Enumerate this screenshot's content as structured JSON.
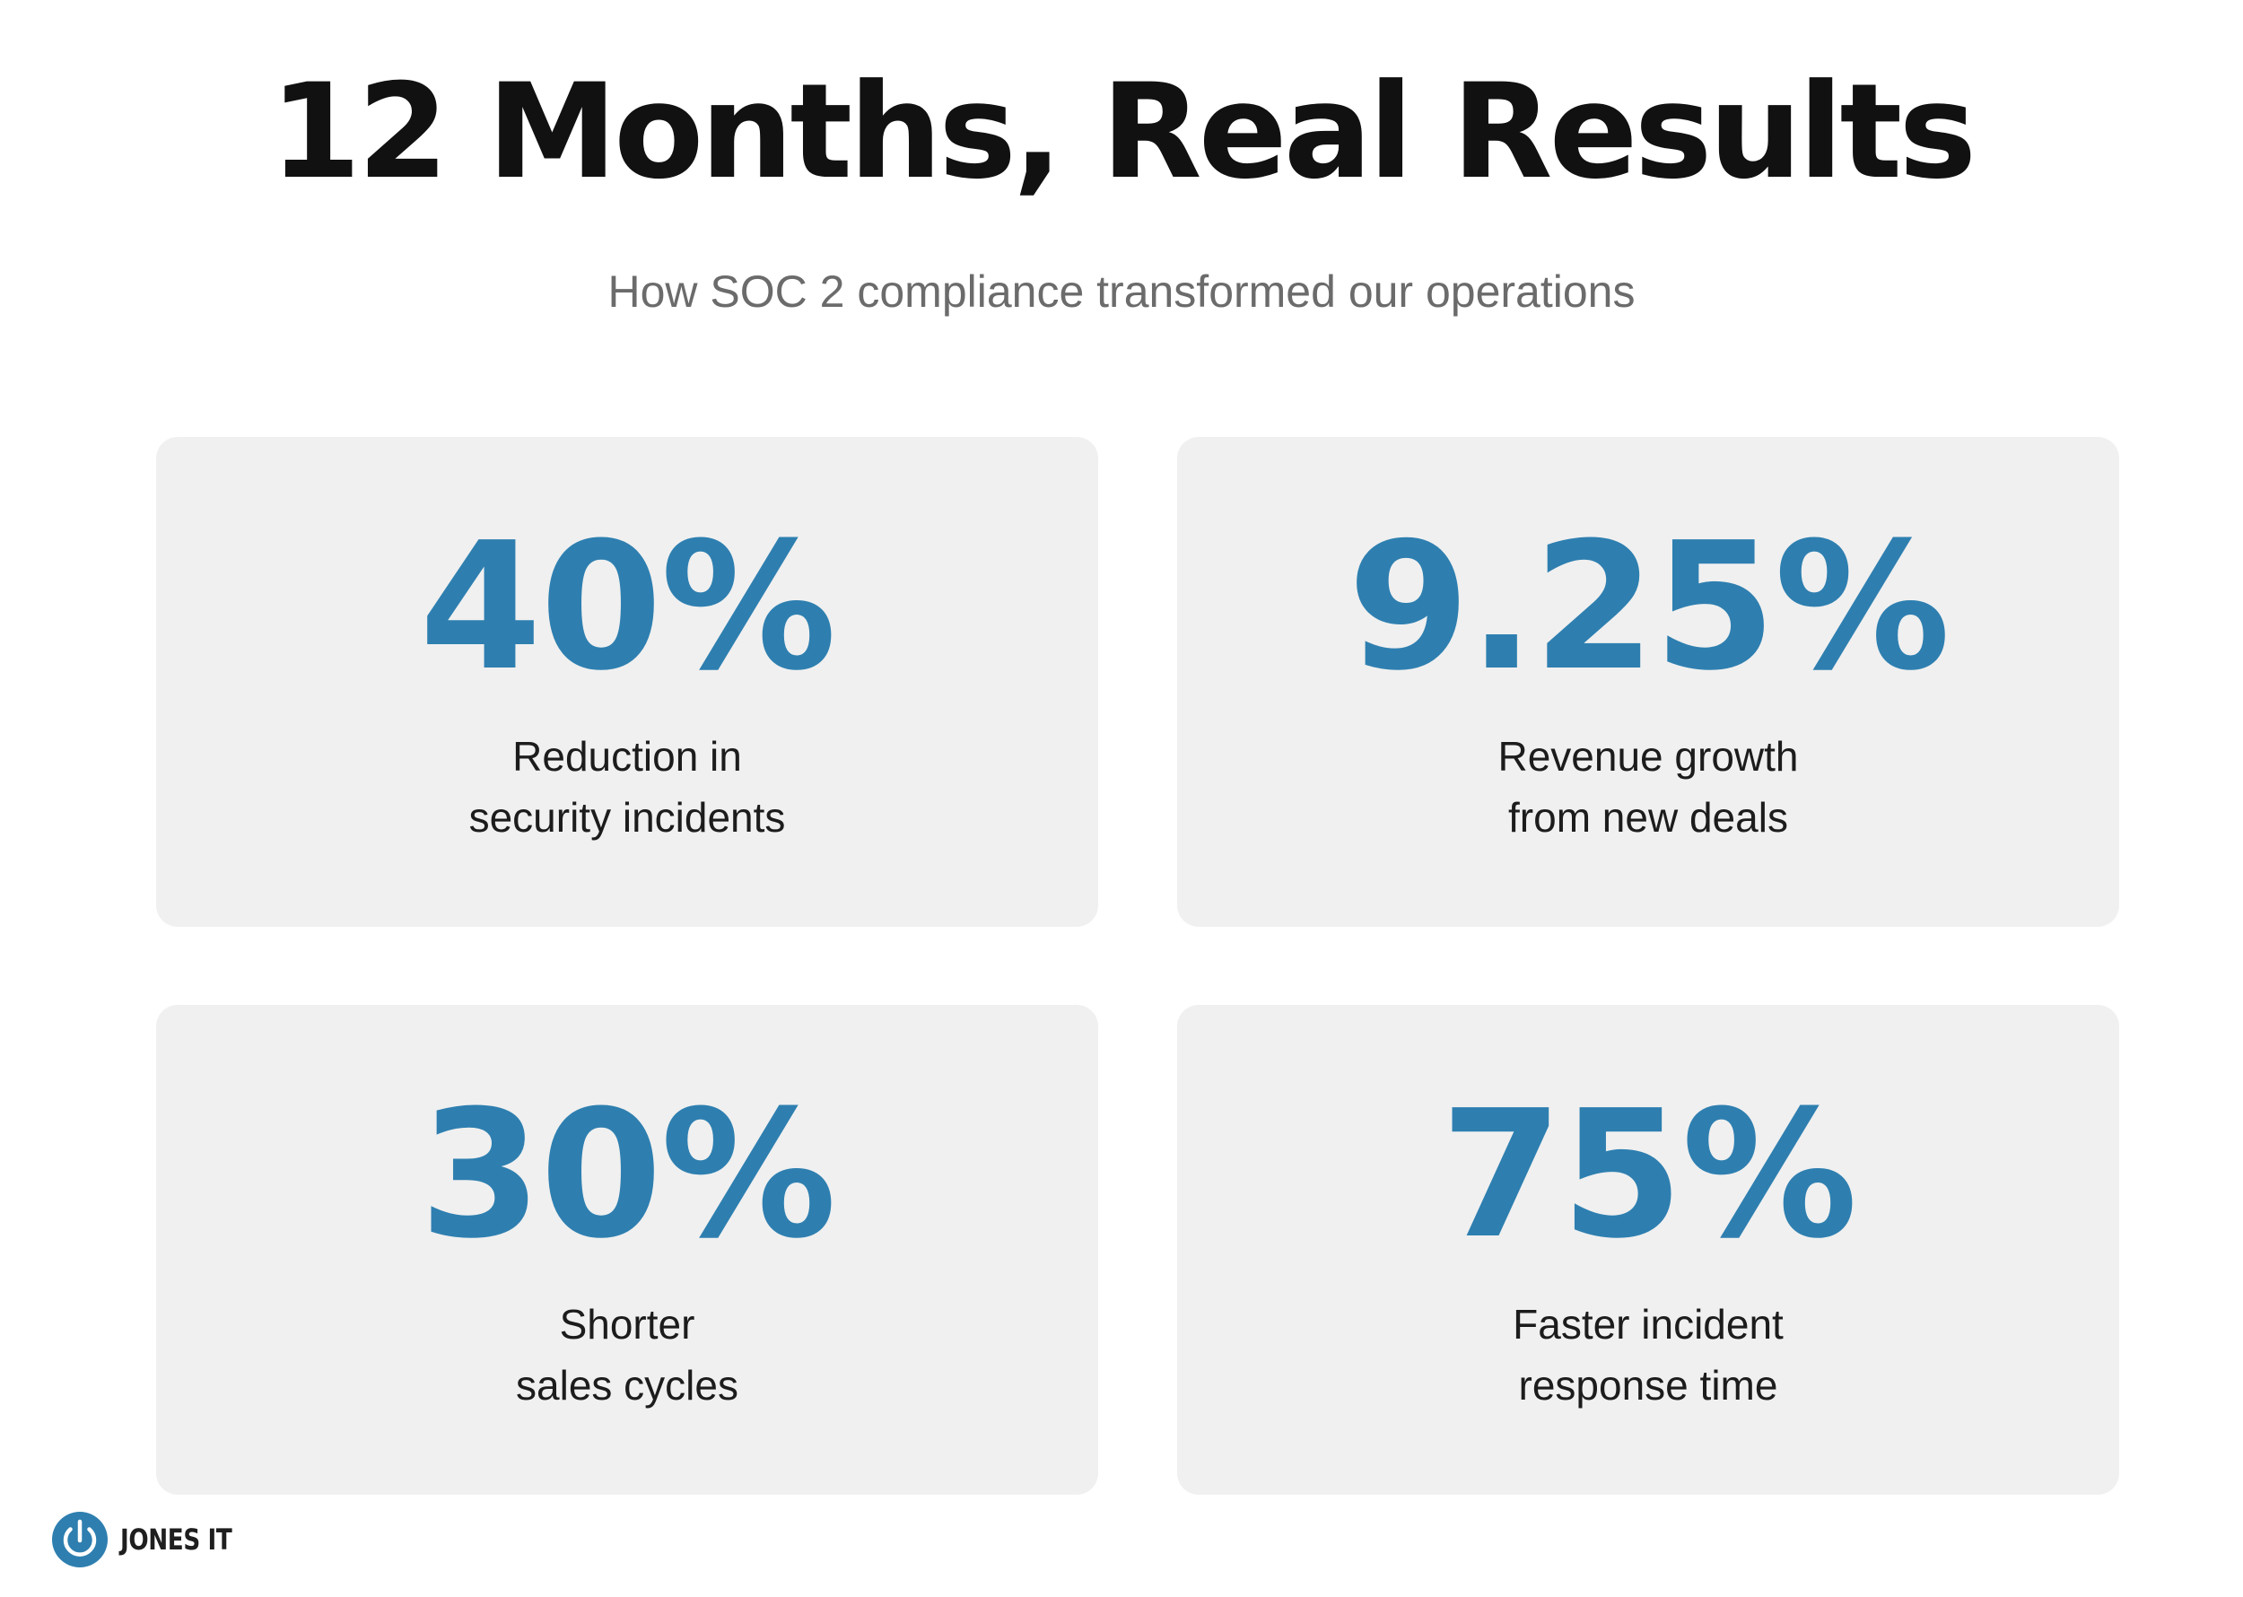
{
  "header": {
    "title": "12 Months, Real Results",
    "subtitle": "How SOC 2 compliance transformed our operations"
  },
  "stats": [
    {
      "value": "40%",
      "label_line1": "Reduction in",
      "label_line2": "security incidents"
    },
    {
      "value": "9.25%",
      "label_line1": "Revenue growth",
      "label_line2": "from new deals"
    },
    {
      "value": "30%",
      "label_line1": "Shorter",
      "label_line2": "sales cycles"
    },
    {
      "value": "75%",
      "label_line1": "Faster incident",
      "label_line2": "response time"
    }
  ],
  "brand": {
    "name": "JONES IT",
    "icon": "power-icon"
  },
  "colors": {
    "accent": "#2e7fb0",
    "card_background": "#f0f0f0",
    "title": "#111111",
    "subtitle": "#6b6b6b"
  }
}
